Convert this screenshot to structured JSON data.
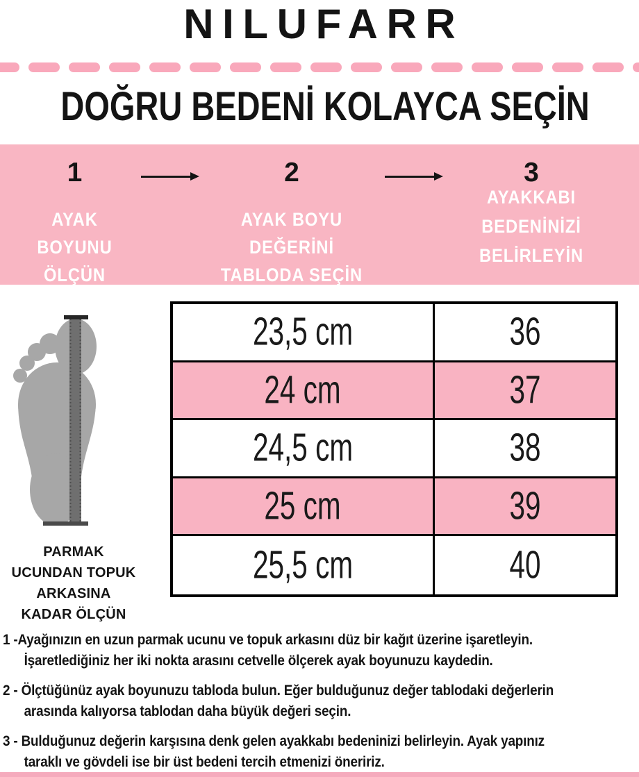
{
  "brand": "NILUFARR",
  "title": "DOĞRU BEDENİ KOLAYCA SEÇİN",
  "divider": {
    "dash_count": 17
  },
  "colors": {
    "pink_banner": "#F9B6C3",
    "pink_row": "#F9B3C2",
    "pink_dash": "#F9A8BB",
    "pink_strip": "#F5ABBD",
    "text_black": "#141414",
    "foot_gray": "#A7A7A7",
    "ruler_gray": "#6F6F6F",
    "white": "#FFFFFF"
  },
  "steps": {
    "items": [
      {
        "number": "1",
        "label_lines": [
          "AYAK BOYUNU",
          "ÖLÇÜN"
        ]
      },
      {
        "number": "2",
        "label_lines": [
          "AYAK BOYU DEĞERİNİ",
          "TABLODA SEÇİN"
        ]
      },
      {
        "number": "3",
        "label_lines": [
          "AYAKKABI",
          "BEDENİNİZİ",
          "BELİRLEYİN"
        ]
      }
    ],
    "arrow_icon": "arrow-right-icon"
  },
  "foot": {
    "icon": "footprint-icon",
    "ruler_icon": "ruler-icon",
    "caption_lines": [
      "PARMAK",
      "UCUNDAN TOPUK",
      "ARKASINA",
      "KADAR ÖLÇÜN"
    ]
  },
  "size_table": {
    "rows": [
      {
        "foot_length": "23,5 cm",
        "size": "36",
        "highlighted": false
      },
      {
        "foot_length": "24 cm",
        "size": "37",
        "highlighted": true
      },
      {
        "foot_length": "24,5 cm",
        "size": "38",
        "highlighted": false
      },
      {
        "foot_length": "25 cm",
        "size": "39",
        "highlighted": true
      },
      {
        "foot_length": "25,5 cm",
        "size": "40",
        "highlighted": false
      }
    ]
  },
  "instructions": [
    {
      "lines": [
        "1 -Ayağınızın en uzun parmak ucunu ve topuk arkasını düz bir kağıt üzerine işaretleyin.",
        "İşaretlediğiniz her iki nokta arasını cetvelle ölçerek ayak boyunuzu kaydedin."
      ]
    },
    {
      "lines": [
        "2 - Ölçtüğünüz ayak boyunuzu tabloda bulun. Eğer bulduğunuz değer tablodaki değerlerin",
        "arasında kalıyorsa tablodan daha büyük değeri seçin."
      ]
    },
    {
      "lines": [
        "3 - Bulduğunuz değerin karşısına denk gelen ayakkabı bedeninizi belirleyin. Ayak yapınız",
        "taraklı ve gövdeli ise bir üst bedeni tercih etmenizi öneririz."
      ]
    }
  ]
}
